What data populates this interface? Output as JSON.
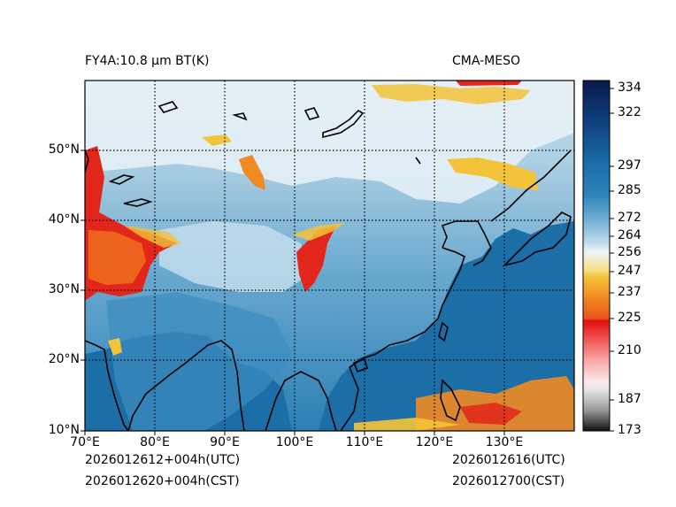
{
  "header": {
    "left_title": "FY4A:10.8 µm BT(K)",
    "right_title": "CMA-MESO"
  },
  "footer": {
    "utc_start": "2026012612+004h(UTC)",
    "cst_start": "2026012620+004h(CST)",
    "utc_valid": "2026012616(UTC)",
    "cst_valid": "2026012700(CST)"
  },
  "axes": {
    "lon_labels": [
      "70°E",
      "80°E",
      "90°E",
      "100°E",
      "110°E",
      "120°E",
      "130°E"
    ],
    "lat_labels": [
      "10°N",
      "20°N",
      "30°N",
      "40°N",
      "50°N"
    ]
  },
  "colorbar": {
    "ticks": [
      "334",
      "322",
      "297",
      "285",
      "272",
      "264",
      "256",
      "247",
      "237",
      "225",
      "210",
      "187",
      "173"
    ],
    "colors": {
      "ocean_warm": "#1b6ea6",
      "land_mid": "#5a9cc5",
      "cold_high": "#e9f2f7",
      "cloud_yellow": "#f3c33a",
      "cloud_orange": "#ee6a1e",
      "cloud_red": "#e2261b"
    }
  }
}
